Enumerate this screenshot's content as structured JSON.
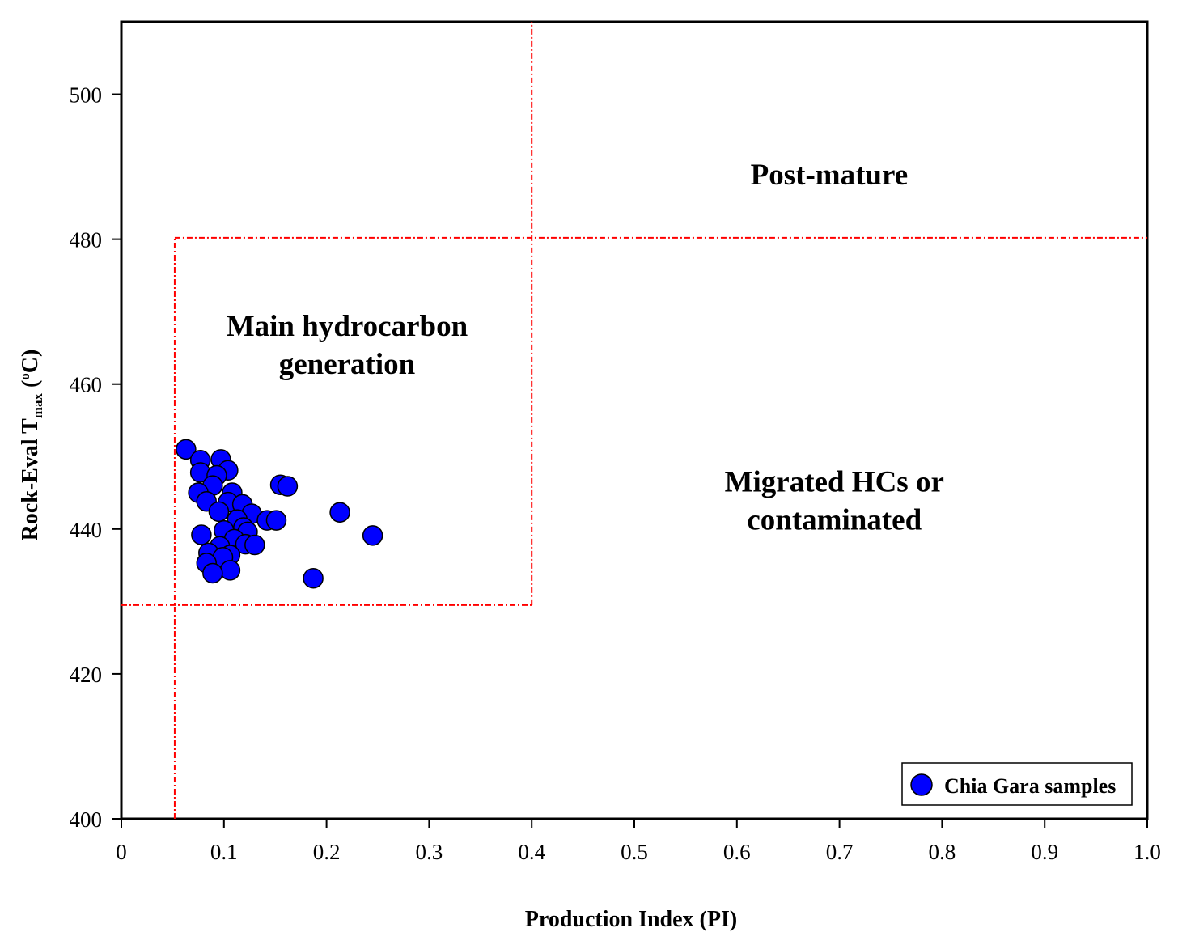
{
  "chart_data": {
    "type": "scatter",
    "xlabel": "Production Index (PI)",
    "ylabel": {
      "prefix": "Rock-Eval T",
      "subscript": "max",
      "suffix": " (",
      "sup": "o",
      "unit": "C)"
    },
    "xlim": [
      0,
      1.0
    ],
    "ylim": [
      400,
      510
    ],
    "x_ticks": [
      0,
      0.1,
      0.2,
      0.3,
      0.4,
      0.5,
      0.6,
      0.7,
      0.8,
      0.9,
      1.0
    ],
    "x_tick_labels": [
      "0",
      "0.1",
      "0.2",
      "0.3",
      "0.4",
      "0.5",
      "0.6",
      "0.7",
      "0.8",
      "0.9",
      "1.0"
    ],
    "y_ticks": [
      400,
      420,
      440,
      460,
      480,
      500
    ],
    "y_tick_labels": [
      "400",
      "420",
      "440",
      "460",
      "480",
      "500"
    ],
    "grid": false,
    "legend_position": "bottom-right",
    "series": [
      {
        "name": "Chia Gara samples",
        "color": "#0000ff",
        "marker": "circle",
        "points": [
          [
            0.063,
            451.0
          ],
          [
            0.077,
            449.5
          ],
          [
            0.097,
            449.6
          ],
          [
            0.104,
            448.1
          ],
          [
            0.077,
            447.8
          ],
          [
            0.093,
            447.4
          ],
          [
            0.089,
            446.0
          ],
          [
            0.155,
            446.1
          ],
          [
            0.162,
            445.9
          ],
          [
            0.075,
            445.0
          ],
          [
            0.108,
            445.0
          ],
          [
            0.083,
            443.8
          ],
          [
            0.104,
            443.7
          ],
          [
            0.118,
            443.4
          ],
          [
            0.095,
            442.4
          ],
          [
            0.127,
            442.1
          ],
          [
            0.213,
            442.3
          ],
          [
            0.113,
            441.3
          ],
          [
            0.142,
            441.2
          ],
          [
            0.151,
            441.2
          ],
          [
            0.119,
            440.2
          ],
          [
            0.1,
            439.8
          ],
          [
            0.123,
            439.6
          ],
          [
            0.078,
            439.2
          ],
          [
            0.245,
            439.1
          ],
          [
            0.11,
            438.6
          ],
          [
            0.121,
            437.9
          ],
          [
            0.13,
            437.8
          ],
          [
            0.096,
            437.6
          ],
          [
            0.085,
            436.7
          ],
          [
            0.106,
            436.4
          ],
          [
            0.099,
            436.1
          ],
          [
            0.083,
            435.3
          ],
          [
            0.106,
            434.3
          ],
          [
            0.089,
            433.9
          ],
          [
            0.187,
            433.2
          ]
        ]
      }
    ],
    "reference_lines": [
      {
        "orientation": "vertical",
        "x": 0.4,
        "from": 429.5,
        "to": 510
      },
      {
        "orientation": "vertical",
        "x": 0.052,
        "from": 400,
        "to": 480.2
      },
      {
        "orientation": "horizontal",
        "y": 480.2,
        "from": 0.052,
        "to": 1.0
      },
      {
        "orientation": "horizontal",
        "y": 429.5,
        "from": 0,
        "to": 0.4
      }
    ],
    "reference_line_color": "#ff0000",
    "annotations": [
      {
        "lines": [
          "Post-mature"
        ],
        "x": 0.69,
        "y": 489
      },
      {
        "lines": [
          "Main hydrocarbon",
          "generation"
        ],
        "x": 0.22,
        "y": 465.5
      },
      {
        "lines": [
          "Migrated HCs or",
          "contaminated"
        ],
        "x": 0.695,
        "y": 444
      }
    ]
  }
}
